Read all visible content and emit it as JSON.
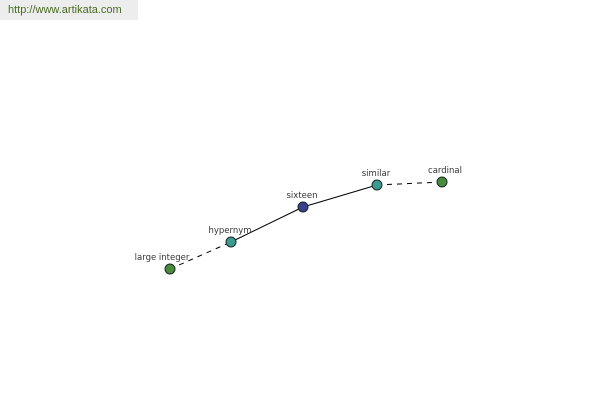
{
  "watermark": {
    "text": "http://www.artikata.com"
  },
  "graph": {
    "nodes": [
      {
        "id": "large_integer",
        "label": "large integer",
        "color": "#4a8a3c"
      },
      {
        "id": "hypernym",
        "label": "hypernym",
        "color": "#3d9a8f"
      },
      {
        "id": "sixteen",
        "label": "sixteen",
        "color": "#3b3f8c"
      },
      {
        "id": "similar",
        "label": "similar",
        "color": "#3d9a8f"
      },
      {
        "id": "cardinal",
        "label": "cardinal",
        "color": "#4a8a3c"
      }
    ],
    "edges": [
      {
        "from": "large_integer",
        "to": "hypernym",
        "style": "dashed"
      },
      {
        "from": "hypernym",
        "to": "sixteen",
        "style": "solid"
      },
      {
        "from": "sixteen",
        "to": "similar",
        "style": "solid"
      },
      {
        "from": "similar",
        "to": "cardinal",
        "style": "dashed"
      }
    ]
  }
}
